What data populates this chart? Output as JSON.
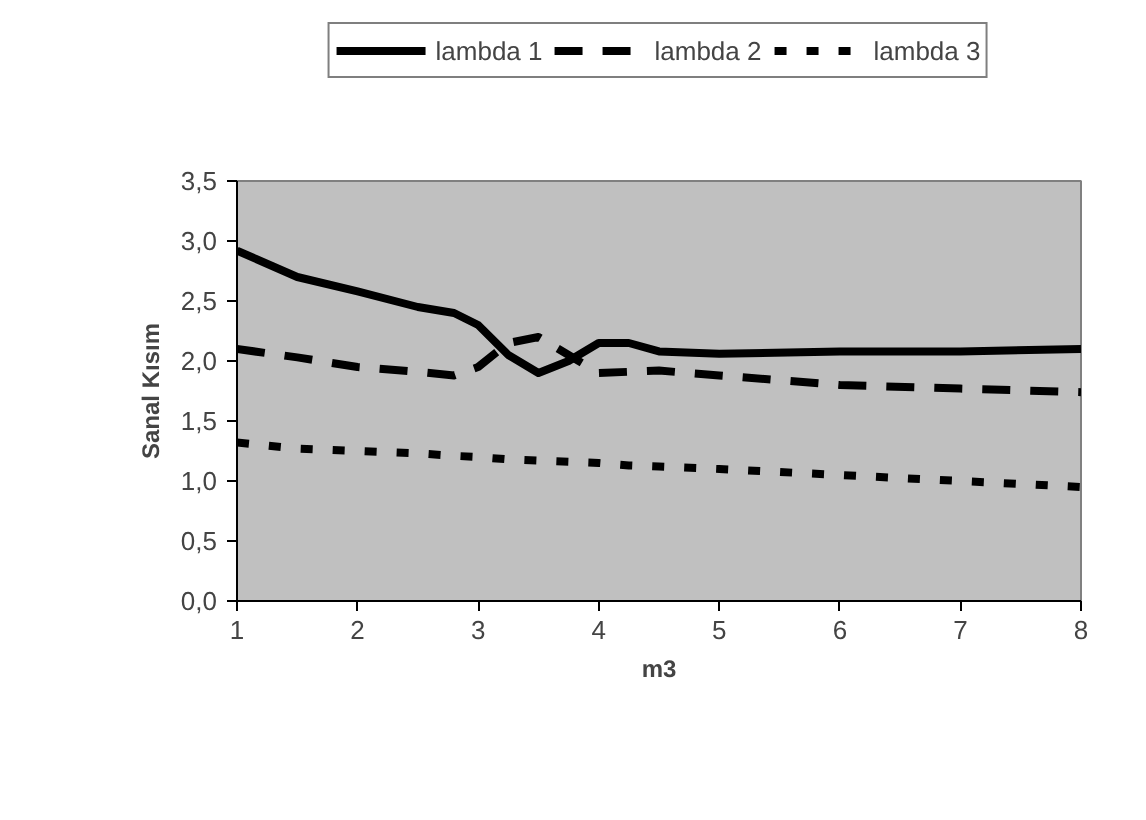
{
  "chart_data": {
    "type": "line",
    "xlabel": "m3",
    "ylabel": "Sanal Kısım",
    "x": [
      1,
      1.5,
      2,
      2.5,
      2.8,
      3,
      3.25,
      3.5,
      3.75,
      4,
      4.25,
      4.5,
      5,
      6,
      7,
      8
    ],
    "series": [
      {
        "name": "lambda 1",
        "color": "#000000",
        "line_style": "solid",
        "values": [
          2.92,
          2.7,
          2.58,
          2.45,
          2.4,
          2.3,
          2.05,
          1.9,
          2.0,
          2.15,
          2.15,
          2.08,
          2.06,
          2.08,
          2.08,
          2.1
        ]
      },
      {
        "name": "lambda 2",
        "color": "#000000",
        "line_style": "dashed",
        "values": [
          2.1,
          2.03,
          1.95,
          1.91,
          1.88,
          1.95,
          2.15,
          2.2,
          2.05,
          1.9,
          1.91,
          1.92,
          1.88,
          1.8,
          1.77,
          1.74
        ]
      },
      {
        "name": "lambda 3",
        "color": "#000000",
        "line_style": "dotted",
        "values": [
          1.32,
          1.27,
          1.25,
          1.23,
          1.21,
          1.2,
          1.18,
          1.17,
          1.16,
          1.15,
          1.13,
          1.12,
          1.1,
          1.05,
          1.0,
          0.95
        ]
      }
    ],
    "xlim": [
      1,
      8
    ],
    "xticks": [
      1,
      2,
      3,
      4,
      5,
      6,
      7,
      8
    ],
    "ylim": [
      0,
      3.5
    ],
    "yticks": [
      {
        "value": 0,
        "label": "0,0"
      },
      {
        "value": 0.5,
        "label": "0,5"
      },
      {
        "value": 1,
        "label": "1,0"
      },
      {
        "value": 1.5,
        "label": "1,5"
      },
      {
        "value": 2,
        "label": "2,0"
      },
      {
        "value": 2.5,
        "label": "2,5"
      },
      {
        "value": 3,
        "label": "3,0"
      },
      {
        "value": 3.5,
        "label": "3,5"
      }
    ],
    "grid": false,
    "legend": "top",
    "marker": "none"
  }
}
